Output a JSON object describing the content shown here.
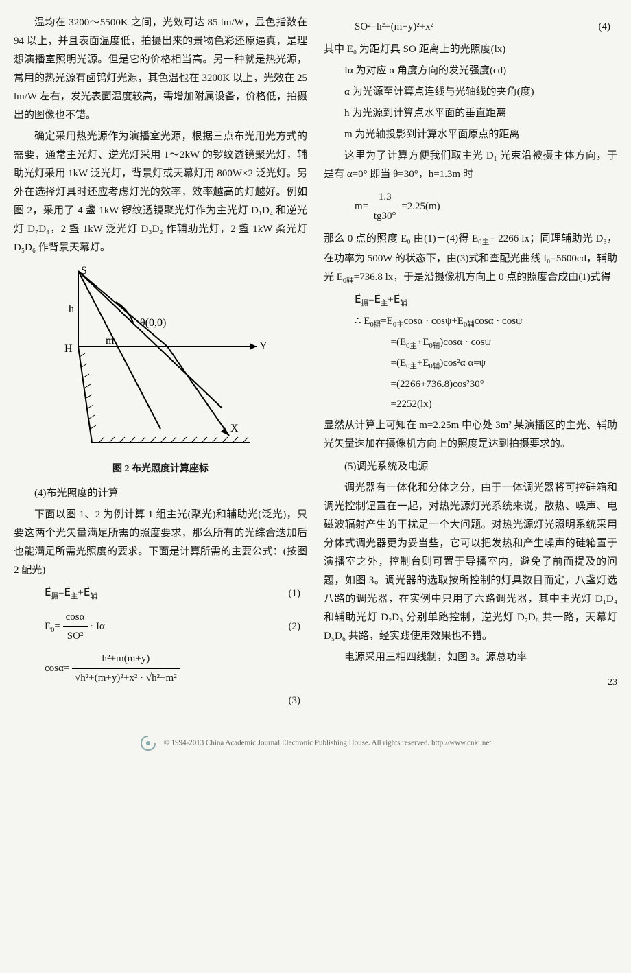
{
  "left": {
    "p1": "温均在 3200～5500K 之间，光效可达 85 lm/W，显色指数在 94 以上，并且表面温度低，拍摄出来的景物色彩还原逼真，是理想演播室照明光源。但是它的价格相当高。另一种就是热光源，常用的热光源有卤钨灯光源，其色温也在 3200K 以上，光效在 25 lm/W 左右，发光表面温度较高，需增加附属设备，价格低，拍摄出的图像也不错。",
    "p2": "确定采用热光源作为演播室光源，根据三点布光用光方式的需要，通常主光灯、逆光灯采用 1～2kW 的锣纹透镜聚光灯，辅助光灯采用 1kW 泛光灯，背景灯或天幕灯用 800W×2 泛光灯。另外在选择灯具时还应考虑灯光的效率，效率越高的灯越好。例如图 2，采用了 4 盏 1kW 锣纹透镜聚光灯作为主光灯 D₁D₄ 和逆光灯 D₇D₈，2 盏 1kW 泛光灯 D₃D₂ 作辅助光灯，2 盏 1kW 柔光灯 D₅D₆ 作背景天幕灯。",
    "fig2_caption": "图 2  布光照度计算座标",
    "sec4_title": "(4)布光照度的计算",
    "p3": "下面以图 1、2 为例计算 1 组主光(聚光)和辅助光(泛光)，只要这两个光矢量满足所需的照度要求，那么所有的光综合迭加后也能满足所需光照度的要求。下面是计算所需的主要公式：(按图 2 配光)",
    "eq1": "E⃗<sub>摄</sub>=E⃗<sub>主</sub>+E⃗<sub>辅</sub>",
    "eq1_num": "(1)",
    "eq2_left": "E<sub>0</sub>=",
    "eq2_num_t": "cosα",
    "eq2_den": "SO²",
    "eq2_right": " · Iα",
    "eq2_num": "(2)",
    "eq3_left": "cosα=",
    "eq3_num_t": "h²+m(m+y)",
    "eq3_den": "√h²+(m+y)²+x² · √h²+m²",
    "eq3_num": "(3)"
  },
  "right": {
    "eq4": "SO²=h²+(m+y)²+x²",
    "eq4_num": "(4)",
    "p4": "其中 E₀ 为距灯具 SO 距离上的光照度(lx)",
    "p5": "Iα 为对应 α 角度方向的发光强度(cd)",
    "p6": "α 为光源至计算点连线与光轴线的夹角(度)",
    "p7": "h 为光源到计算点水平面的垂直距离",
    "p8": "m 为光轴投影到计算水平面原点的距离",
    "p9": "这里为了计算方便我们取主光 D₁ 光束沿被摄主体方向，于是有 α=0° 即当 θ=30°，h=1.3m 时",
    "eq5_left": "m=",
    "eq5_num_t": "1.3",
    "eq5_den": "tg30°",
    "eq5_right": "=2.25(m)",
    "p10": "那么 0 点的照度 E₀ 由(1)－(4)得 E<sub>0主</sub>= 2266 lx；同理辅助光 D₃，在功率为 500W 的状态下，由(3)式和查配光曲线 I₀=5600cd，辅助光 E<sub>0辅</sub>=736.8 lx，于是沿摄像机方向上 0 点的照度合成由(1)式得",
    "d0": "E⃗<sub>摄</sub>=E⃗<sub>主</sub>+E⃗<sub>辅</sub>",
    "d1": "∴  E<sub>0摄</sub>=E<sub>0主</sub>cosα · cosψ+E<sub>0辅</sub>cosα · cosψ",
    "d2": "=(E<sub>0主</sub>+E<sub>0辅</sub>)cosα · cosψ",
    "d3": "=(E<sub>0主</sub>+E<sub>0辅</sub>)cos²α     α=ψ",
    "d4": "=(2266+736.8)cos²30°",
    "d5": "=2252(lx)",
    "p11": "显然从计算上可知在 m=2.25m 中心处 3m² 某演播区的主光、辅助光矢量迭加在摄像机方向上的照度是达到拍摄要求的。",
    "sec5_title": "(5)调光系统及电源",
    "p12": "调光器有一体化和分体之分，由于一体调光器将可控硅箱和调光控制钮置在一起，对热光源灯光系统来说，散热、噪声、电磁波辐射产生的干扰是一个大问题。对热光源灯光照明系统采用分体式调光器更为妥当些，它可以把发热和产生噪声的硅箱置于演播室之外，控制台则可置于导播室内，避免了前面提及的问题，如图 3。调光器的选取按所控制的灯具数目而定，八盏灯选八路的调光器，在实例中只用了六路调光器，其中主光灯 D₁D₄ 和辅助光灯 D₂D₃ 分别单路控制，逆光灯 D₇D₈ 共一路，天幕灯 D₅D₆ 共路，经实践使用效果也不错。",
    "p13": "电源采用三相四线制，如图 3。源总功率"
  },
  "figure2": {
    "labels": {
      "S": "S",
      "h": "h",
      "m": "m",
      "H": "H",
      "theta": "θ(0,0)",
      "Y": "Y",
      "X": "X"
    },
    "stroke": "#000000",
    "fill": "#ffffff"
  },
  "page_num": "23",
  "footer": "© 1994-2013 China Academic Journal Electronic Publishing House. All rights reserved.   http://www.cnki.net"
}
